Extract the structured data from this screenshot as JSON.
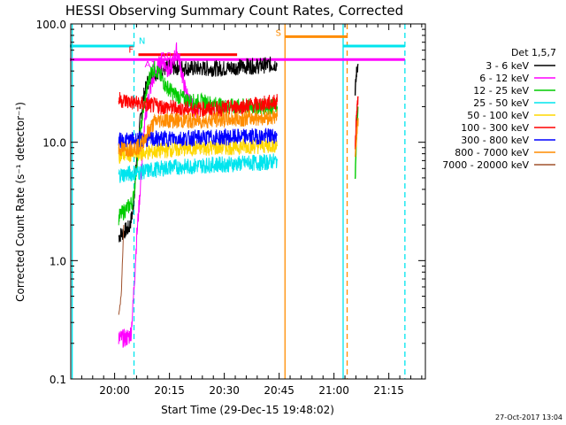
{
  "chart_data": {
    "type": "line",
    "title": "HESSI Observing Summary Count Rates, Corrected",
    "xlabel": "Start Time (29-Dec-15 19:48:02)",
    "ylabel": "Corrected Count Rate (s⁻¹ detector⁻¹)",
    "x_units": "minutes since start time",
    "xlim": [
      0,
      97
    ],
    "ylim": [
      0.1,
      100.0
    ],
    "y_scale": "log",
    "x_ticks": [
      {
        "label": "20:00",
        "value": 12
      },
      {
        "label": "20:15",
        "value": 27
      },
      {
        "label": "20:30",
        "value": 42
      },
      {
        "label": "20:45",
        "value": 57
      },
      {
        "label": "21:00",
        "value": 72
      },
      {
        "label": "21:15",
        "value": 87
      }
    ],
    "y_ticks": [
      {
        "label": "0.1",
        "value": 0.1
      },
      {
        "label": "1.0",
        "value": 1.0
      },
      {
        "label": "10.0",
        "value": 10.0
      },
      {
        "label": "100.0",
        "value": 100.0
      }
    ],
    "legend": {
      "title": "Det 1,5,7",
      "placement": "right"
    },
    "series": [
      {
        "name": "3 - 6 keV",
        "color": "#000000",
        "points": [
          [
            13.1,
            1.6
          ],
          [
            14,
            1.7
          ],
          [
            15,
            1.8
          ],
          [
            16,
            1.9
          ],
          [
            17,
            2.6
          ],
          [
            18,
            7
          ],
          [
            19,
            15
          ],
          [
            20,
            25
          ],
          [
            21,
            32
          ],
          [
            22,
            36
          ],
          [
            24,
            40
          ],
          [
            26,
            42
          ],
          [
            28,
            43
          ],
          [
            30,
            43
          ],
          [
            33,
            42
          ],
          [
            36,
            42
          ],
          [
            39,
            42
          ],
          [
            42,
            42
          ],
          [
            45,
            43
          ],
          [
            48,
            44
          ],
          [
            51,
            44
          ],
          [
            54,
            45
          ],
          [
            56.5,
            46
          ]
        ],
        "late": [
          [
            77.8,
            27
          ],
          [
            78.2,
            40
          ],
          [
            78.6,
            45
          ]
        ]
      },
      {
        "name": "6 - 12 keV",
        "color": "#ff00ff",
        "points": [
          [
            13.1,
            0.22
          ],
          [
            14,
            0.22
          ],
          [
            15,
            0.22
          ],
          [
            16,
            0.23
          ],
          [
            16.5,
            0.25
          ],
          [
            17,
            0.4
          ],
          [
            18,
            1.5
          ],
          [
            19,
            4
          ],
          [
            20,
            12
          ],
          [
            21,
            22
          ],
          [
            22,
            30
          ],
          [
            23,
            38
          ],
          [
            24,
            44
          ],
          [
            25,
            50
          ],
          [
            26,
            44
          ],
          [
            27,
            40
          ],
          [
            28,
            48
          ],
          [
            29,
            60
          ],
          [
            30,
            45
          ],
          [
            31,
            30
          ],
          [
            32,
            24
          ],
          [
            33,
            20
          ],
          [
            34,
            19
          ],
          [
            35,
            18
          ]
        ],
        "late": []
      },
      {
        "name": "12 - 25 keV",
        "color": "#00cc00",
        "points": [
          [
            13.1,
            2.3
          ],
          [
            14,
            2.5
          ],
          [
            15,
            2.7
          ],
          [
            16,
            2.9
          ],
          [
            17,
            3.2
          ],
          [
            18,
            6
          ],
          [
            19,
            12
          ],
          [
            20,
            20
          ],
          [
            21,
            30
          ],
          [
            22,
            40
          ],
          [
            23,
            42
          ],
          [
            24,
            38
          ],
          [
            25,
            34
          ],
          [
            26,
            30
          ],
          [
            27,
            28
          ],
          [
            28,
            26
          ],
          [
            30,
            24
          ],
          [
            33,
            22
          ],
          [
            36,
            22
          ],
          [
            39,
            21
          ],
          [
            42,
            20
          ],
          [
            45,
            20
          ],
          [
            48,
            20
          ],
          [
            51,
            20
          ],
          [
            54,
            20
          ],
          [
            56.5,
            20
          ]
        ],
        "late": [
          [
            77.8,
            5
          ],
          [
            78.2,
            12
          ],
          [
            78.6,
            20
          ]
        ]
      },
      {
        "name": "25 - 50 keV",
        "color": "#00e5ee",
        "points": [
          [
            13.1,
            5.3
          ],
          [
            16,
            5.4
          ],
          [
            19,
            5.6
          ],
          [
            22,
            5.8
          ],
          [
            25,
            6.0
          ],
          [
            28,
            6.2
          ],
          [
            31,
            6.2
          ],
          [
            34,
            6.3
          ],
          [
            37,
            6.4
          ],
          [
            40,
            6.5
          ],
          [
            43,
            6.5
          ],
          [
            46,
            6.6
          ],
          [
            49,
            6.7
          ],
          [
            52,
            6.7
          ],
          [
            54,
            6.8
          ],
          [
            56.5,
            7
          ]
        ],
        "late": []
      },
      {
        "name": "50 - 100 keV",
        "color": "#ffd700",
        "points": [
          [
            13.1,
            7.8
          ],
          [
            16,
            7.9
          ],
          [
            19,
            8.1
          ],
          [
            22,
            8.3
          ],
          [
            25,
            8.5
          ],
          [
            28,
            8.7
          ],
          [
            31,
            8.8
          ],
          [
            34,
            8.9
          ],
          [
            37,
            9.0
          ],
          [
            40,
            9.0
          ],
          [
            43,
            9.1
          ],
          [
            46,
            9.2
          ],
          [
            49,
            9.3
          ],
          [
            52,
            9.3
          ],
          [
            56.5,
            9.5
          ]
        ],
        "late": []
      },
      {
        "name": "100 - 300 keV",
        "color": "#ff0000",
        "points": [
          [
            13.1,
            23
          ],
          [
            16,
            22
          ],
          [
            19,
            21
          ],
          [
            22,
            20.5
          ],
          [
            25,
            20
          ],
          [
            28,
            19.5
          ],
          [
            31,
            19
          ],
          [
            34,
            19
          ],
          [
            37,
            19
          ],
          [
            40,
            19
          ],
          [
            43,
            19.5
          ],
          [
            46,
            20
          ],
          [
            49,
            20.5
          ],
          [
            52,
            21
          ],
          [
            56.5,
            22
          ]
        ],
        "late": [
          [
            77.8,
            9
          ],
          [
            78.2,
            18
          ],
          [
            78.6,
            24
          ]
        ]
      },
      {
        "name": "300 - 800 keV",
        "color": "#0000ff",
        "points": [
          [
            13.1,
            10.3
          ],
          [
            16,
            10.4
          ],
          [
            19,
            10.5
          ],
          [
            22,
            10.6
          ],
          [
            25,
            10.7
          ],
          [
            28,
            10.8
          ],
          [
            31,
            10.8
          ],
          [
            34,
            10.9
          ],
          [
            37,
            10.9
          ],
          [
            40,
            11
          ],
          [
            43,
            11
          ],
          [
            46,
            11.1
          ],
          [
            49,
            11.2
          ],
          [
            52,
            11.2
          ],
          [
            56.5,
            11.4
          ]
        ],
        "late": []
      },
      {
        "name": "800 - 7000 keV",
        "color": "#ff8c00",
        "points": [
          [
            13.1,
            8.7
          ],
          [
            16,
            8.8
          ],
          [
            19,
            9.2
          ],
          [
            21,
            12
          ],
          [
            23,
            15
          ],
          [
            25,
            15.5
          ],
          [
            28,
            15.3
          ],
          [
            31,
            15.2
          ],
          [
            34,
            15.2
          ],
          [
            37,
            15.3
          ],
          [
            40,
            15.5
          ],
          [
            43,
            15.6
          ],
          [
            46,
            15.8
          ],
          [
            49,
            16
          ],
          [
            52,
            16.2
          ],
          [
            56.5,
            16.5
          ]
        ],
        "late": [
          [
            77.8,
            7
          ],
          [
            78.2,
            12
          ],
          [
            78.6,
            16
          ]
        ]
      },
      {
        "name": "7000 - 20000 keV",
        "color": "#a0522d",
        "points": [
          [
            13.1,
            0.35
          ],
          [
            13.8,
            0.5
          ],
          [
            14.5,
            2
          ]
        ],
        "late": []
      }
    ],
    "annotations": {
      "vertical_lines": [
        {
          "x": 0.4,
          "color": "#00e5ee",
          "style": "solid"
        },
        {
          "x": 17.3,
          "color": "#00e5ee",
          "style": "dashed"
        },
        {
          "x": 58.6,
          "color": "#ff8c00",
          "style": "solid"
        },
        {
          "x": 74.5,
          "color": "#00e5ee",
          "style": "solid"
        },
        {
          "x": 75.6,
          "color": "#ff8c00",
          "style": "dashed"
        },
        {
          "x": 91.4,
          "color": "#00e5ee",
          "style": "dashed"
        }
      ],
      "flag_bars": [
        {
          "label": "N",
          "color": "#00e5ee",
          "y": 65,
          "segments": [
            [
              -2.2,
              17.3
            ],
            [
              74.5,
              91.4
            ]
          ]
        },
        {
          "label": "A1",
          "color": "#ff00ff",
          "y": 50,
          "segments": [
            [
              -2.2,
              91.4
            ]
          ]
        },
        {
          "label": "F",
          "color": "#ff0000",
          "y": 55,
          "segments": [
            [
              18.5,
              45.5
            ]
          ]
        },
        {
          "label": "S",
          "color": "#ff8c00",
          "y": 78,
          "segments": [
            [
              58.6,
              75.6
            ]
          ]
        }
      ],
      "labels": [
        {
          "text": "N",
          "color": "#00e5ee",
          "x": 19.5,
          "y": 68
        },
        {
          "text": "F",
          "color": "#ff0000",
          "x": 16.5,
          "y": 57
        },
        {
          "text": "A1",
          "color": "#ff00ff",
          "x": 21.8,
          "y": 43
        },
        {
          "text": "A0",
          "color": "#ff00ff",
          "x": 26.0,
          "y": 51
        },
        {
          "text": "S",
          "color": "#ff8c00",
          "x": 56.8,
          "y": 79
        }
      ]
    },
    "footer_timestamp": "27-Oct-2017 13:04"
  }
}
